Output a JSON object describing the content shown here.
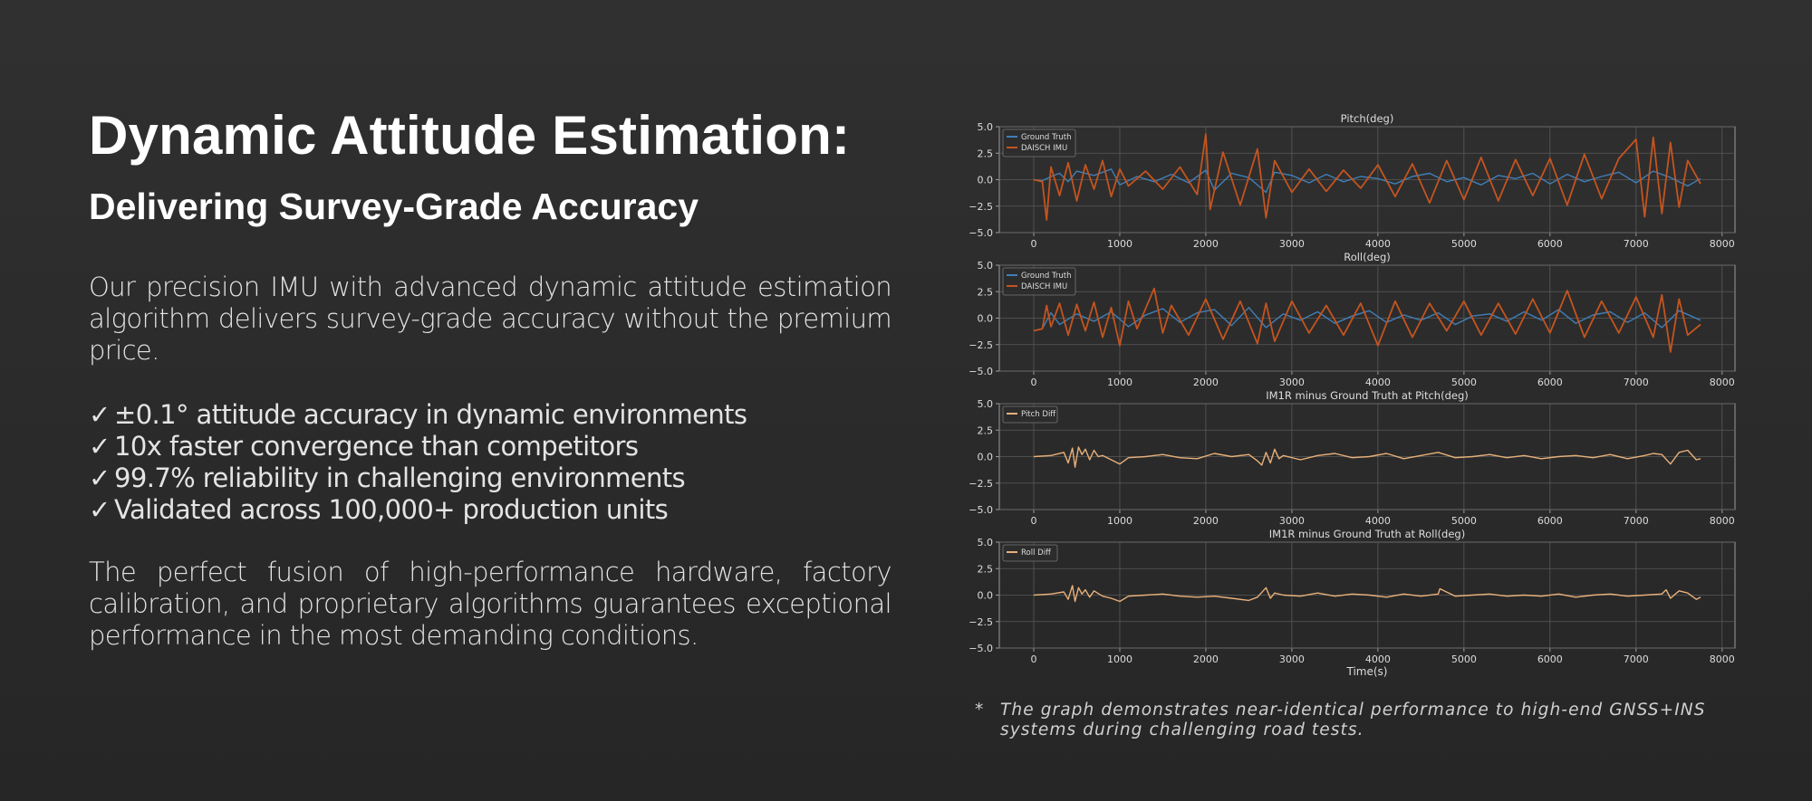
{
  "header": {
    "title": "Dynamic Attitude Estimation:",
    "subtitle": "Delivering Survey-Grade Accuracy"
  },
  "intro": "Our precision IMU with advanced dynamic attitude estimation algorithm delivers survey-grade accuracy without the premium price.",
  "checklist": {
    "mark": "✓",
    "items": [
      "±0.1° attitude accuracy in dynamic environments",
      "10x faster convergence than competitors",
      "99.7% reliability in challenging environments",
      "Validated across 100,000+ production units"
    ]
  },
  "closing": "The perfect fusion of high-performance hardware, factory calibration, and proprietary algorithms guarantees exceptional performance in the most demanding conditions.",
  "footnote": {
    "marker": "*",
    "text": "The graph demonstrates near-identical performance to high-end GNSS+INS systems during challenging road tests."
  },
  "colors": {
    "ground_truth": "#3f7fb8",
    "imu": "#c4541f",
    "diff": "#e8b07a",
    "grid": "#5a5a5a",
    "axis": "#9a9a9a",
    "tick_text": "#dddddd"
  },
  "chart_data": [
    {
      "type": "line",
      "title": "Pitch(deg)",
      "xlabel": "",
      "ylabel": "",
      "xlim": [
        -400,
        8150
      ],
      "ylim": [
        -5.0,
        5.0
      ],
      "xticks": [
        0,
        1000,
        2000,
        3000,
        4000,
        5000,
        6000,
        7000,
        8000
      ],
      "yticks": [
        5.0,
        2.5,
        0.0,
        -2.5,
        -5.0
      ],
      "yticklabels": [
        "5.0",
        "2.5",
        "0.0",
        "−2.5",
        "−5.0"
      ],
      "grid": true,
      "legend": "top-left",
      "series": [
        {
          "name": "Ground Truth",
          "x": [
            0,
            100,
            200,
            300,
            400,
            500,
            700,
            900,
            1000,
            1200,
            1400,
            1600,
            1800,
            2000,
            2100,
            2300,
            2500,
            2700,
            2800,
            3000,
            3200,
            3400,
            3600,
            3800,
            4000,
            4200,
            4400,
            4600,
            4800,
            5000,
            5200,
            5400,
            5600,
            5800,
            6000,
            6200,
            6400,
            6600,
            6800,
            7000,
            7200,
            7400,
            7600,
            7750
          ],
          "y": [
            0.0,
            -0.1,
            0.3,
            0.6,
            -0.2,
            0.8,
            0.4,
            1.0,
            -0.5,
            0.3,
            -0.2,
            0.5,
            -0.3,
            0.9,
            -1.0,
            0.6,
            0.2,
            -1.2,
            0.7,
            0.4,
            -0.3,
            0.5,
            -0.2,
            0.3,
            0.1,
            -0.4,
            0.3,
            0.6,
            -0.2,
            0.2,
            -0.5,
            0.4,
            0.1,
            0.6,
            -0.4,
            0.5,
            -0.2,
            0.3,
            0.7,
            -0.3,
            0.8,
            0.2,
            -0.6,
            0.1
          ]
        },
        {
          "name": "DAISCH IMU",
          "x": [
            0,
            100,
            150,
            200,
            300,
            400,
            500,
            600,
            700,
            800,
            900,
            1000,
            1100,
            1300,
            1500,
            1700,
            1900,
            2000,
            2050,
            2200,
            2400,
            2600,
            2700,
            2800,
            3000,
            3200,
            3400,
            3600,
            3800,
            4000,
            4200,
            4400,
            4600,
            4800,
            5000,
            5200,
            5400,
            5600,
            5800,
            6000,
            6200,
            6400,
            6600,
            6800,
            7000,
            7100,
            7200,
            7300,
            7400,
            7500,
            7600,
            7750
          ],
          "y": [
            0.0,
            -0.2,
            -3.8,
            1.2,
            -1.5,
            1.6,
            -2.0,
            1.4,
            -0.9,
            1.8,
            -1.6,
            1.0,
            -0.6,
            0.8,
            -0.9,
            1.2,
            -1.4,
            4.3,
            -2.8,
            2.6,
            -2.4,
            2.9,
            -3.6,
            1.8,
            -1.2,
            1.0,
            -1.1,
            0.9,
            -0.8,
            1.4,
            -1.6,
            1.5,
            -2.2,
            1.8,
            -1.9,
            2.1,
            -2.0,
            1.9,
            -1.5,
            2.0,
            -2.4,
            2.4,
            -1.8,
            2.0,
            3.8,
            -3.5,
            4.0,
            -3.2,
            3.5,
            -2.6,
            1.8,
            -0.4
          ]
        }
      ]
    },
    {
      "type": "line",
      "title": "Roll(deg)",
      "xlabel": "",
      "ylabel": "",
      "xlim": [
        -400,
        8150
      ],
      "ylim": [
        -5.0,
        5.0
      ],
      "xticks": [
        0,
        1000,
        2000,
        3000,
        4000,
        5000,
        6000,
        7000,
        8000
      ],
      "yticks": [
        5.0,
        2.5,
        0.0,
        -2.5,
        -5.0
      ],
      "yticklabels": [
        "5.0",
        "2.5",
        "0.0",
        "−2.5",
        "−5.0"
      ],
      "grid": true,
      "legend": "top-left",
      "series": [
        {
          "name": "Ground Truth",
          "x": [
            0,
            100,
            200,
            300,
            500,
            700,
            900,
            1100,
            1300,
            1500,
            1700,
            1900,
            2100,
            2300,
            2500,
            2700,
            2900,
            3100,
            3300,
            3500,
            3700,
            3900,
            4100,
            4300,
            4500,
            4700,
            4900,
            5100,
            5300,
            5500,
            5700,
            5900,
            6100,
            6300,
            6500,
            6700,
            6900,
            7100,
            7300,
            7500,
            7750
          ],
          "y": [
            -1.2,
            -1.0,
            0.5,
            -0.6,
            0.4,
            -0.3,
            0.6,
            -0.8,
            0.3,
            0.9,
            -0.4,
            0.5,
            0.8,
            -0.7,
            1.0,
            -0.9,
            0.4,
            -0.2,
            0.6,
            -0.5,
            0.2,
            0.7,
            -0.4,
            0.3,
            -0.2,
            0.5,
            -0.6,
            0.2,
            0.4,
            -0.3,
            0.6,
            -0.2,
            0.8,
            -0.5,
            0.3,
            0.6,
            -0.4,
            0.5,
            -0.9,
            0.7,
            -0.2
          ]
        },
        {
          "name": "DAISCH IMU",
          "x": [
            0,
            100,
            150,
            200,
            300,
            400,
            500,
            600,
            700,
            800,
            900,
            1000,
            1100,
            1200,
            1400,
            1500,
            1600,
            1800,
            2000,
            2200,
            2400,
            2600,
            2700,
            2800,
            3000,
            3200,
            3400,
            3600,
            3800,
            4000,
            4200,
            4400,
            4600,
            4800,
            5000,
            5200,
            5400,
            5600,
            5800,
            6000,
            6200,
            6400,
            6600,
            6800,
            7000,
            7200,
            7300,
            7400,
            7500,
            7600,
            7750
          ],
          "y": [
            -1.2,
            -1.0,
            1.2,
            -0.8,
            1.4,
            -1.6,
            1.3,
            -1.2,
            1.5,
            -1.8,
            1.0,
            -2.6,
            1.6,
            -1.0,
            2.8,
            -1.4,
            1.2,
            -1.6,
            1.8,
            -2.0,
            1.6,
            -2.4,
            1.4,
            -2.2,
            1.6,
            -1.4,
            1.2,
            -1.6,
            1.4,
            -2.6,
            1.6,
            -1.8,
            1.4,
            -1.2,
            1.6,
            -1.6,
            1.4,
            -1.5,
            1.8,
            -1.4,
            2.6,
            -1.8,
            1.6,
            -1.4,
            2.0,
            -1.8,
            2.2,
            -3.2,
            1.8,
            -1.6,
            -0.6
          ]
        }
      ]
    },
    {
      "type": "line",
      "title": "IM1R minus Ground Truth at Pitch(deg)",
      "xlabel": "",
      "ylabel": "",
      "xlim": [
        -400,
        8150
      ],
      "ylim": [
        -5.0,
        5.0
      ],
      "xticks": [
        0,
        1000,
        2000,
        3000,
        4000,
        5000,
        6000,
        7000,
        8000
      ],
      "yticks": [
        5.0,
        2.5,
        0.0,
        -2.5,
        -5.0
      ],
      "yticklabels": [
        "5.0",
        "2.5",
        "0.0",
        "−2.5",
        "−5.0"
      ],
      "grid": true,
      "legend": "top-left",
      "series": [
        {
          "name": "Pitch Diff",
          "x": [
            0,
            200,
            350,
            400,
            450,
            480,
            520,
            560,
            600,
            650,
            700,
            750,
            800,
            900,
            1000,
            1100,
            1300,
            1500,
            1700,
            1900,
            2100,
            2300,
            2500,
            2600,
            2650,
            2700,
            2750,
            2800,
            2850,
            2900,
            3100,
            3300,
            3500,
            3700,
            3900,
            4100,
            4300,
            4500,
            4700,
            4900,
            5100,
            5300,
            5500,
            5700,
            5900,
            6100,
            6300,
            6500,
            6700,
            6900,
            7100,
            7200,
            7300,
            7400,
            7500,
            7600,
            7700,
            7750
          ],
          "y": [
            0.0,
            0.1,
            0.4,
            -0.6,
            0.8,
            -1.0,
            0.9,
            0.2,
            0.7,
            -0.3,
            0.6,
            0.0,
            0.1,
            -0.3,
            -0.7,
            -0.1,
            0.0,
            0.2,
            -0.1,
            -0.2,
            0.3,
            0.0,
            0.2,
            -0.4,
            -0.8,
            0.4,
            -0.6,
            0.7,
            -0.2,
            0.1,
            -0.3,
            0.1,
            0.3,
            -0.1,
            0.0,
            0.3,
            -0.2,
            0.1,
            0.4,
            -0.1,
            0.0,
            0.2,
            -0.1,
            0.1,
            -0.2,
            0.0,
            0.1,
            -0.1,
            0.2,
            -0.2,
            0.1,
            0.3,
            0.2,
            -0.7,
            0.4,
            0.6,
            -0.3,
            -0.2
          ]
        }
      ]
    },
    {
      "type": "line",
      "title": "IM1R minus Ground Truth at Roll(deg)",
      "xlabel": "Time(s)",
      "ylabel": "",
      "xlim": [
        -400,
        8150
      ],
      "ylim": [
        -5.0,
        5.0
      ],
      "xticks": [
        0,
        1000,
        2000,
        3000,
        4000,
        5000,
        6000,
        7000,
        8000
      ],
      "yticks": [
        5.0,
        2.5,
        0.0,
        -2.5,
        -5.0
      ],
      "yticklabels": [
        "5.0",
        "2.5",
        "0.0",
        "−2.5",
        "−5.0"
      ],
      "grid": true,
      "legend": "top-left",
      "series": [
        {
          "name": "Roll Diff",
          "x": [
            0,
            200,
            350,
            400,
            450,
            480,
            520,
            560,
            600,
            650,
            700,
            800,
            900,
            1000,
            1100,
            1300,
            1500,
            1700,
            1900,
            2100,
            2300,
            2500,
            2600,
            2700,
            2750,
            2800,
            2900,
            3100,
            3300,
            3500,
            3700,
            3900,
            4100,
            4300,
            4500,
            4700,
            4720,
            4900,
            5100,
            5300,
            5500,
            5700,
            5900,
            6100,
            6300,
            6500,
            6700,
            6900,
            7100,
            7300,
            7350,
            7400,
            7500,
            7600,
            7700,
            7750
          ],
          "y": [
            0.0,
            0.1,
            0.3,
            -0.4,
            0.9,
            -0.6,
            0.7,
            0.1,
            0.5,
            -0.2,
            0.4,
            -0.1,
            -0.3,
            -0.6,
            -0.1,
            0.0,
            0.1,
            -0.1,
            -0.2,
            -0.1,
            -0.3,
            -0.5,
            -0.2,
            0.7,
            -0.3,
            0.2,
            0.0,
            -0.1,
            0.2,
            -0.1,
            0.1,
            0.0,
            -0.2,
            0.1,
            -0.1,
            0.1,
            0.6,
            -0.1,
            0.0,
            0.1,
            -0.1,
            0.0,
            -0.1,
            0.1,
            -0.2,
            0.0,
            0.1,
            -0.1,
            0.0,
            0.1,
            0.5,
            -0.3,
            0.4,
            0.2,
            -0.4,
            -0.2
          ]
        }
      ]
    }
  ]
}
